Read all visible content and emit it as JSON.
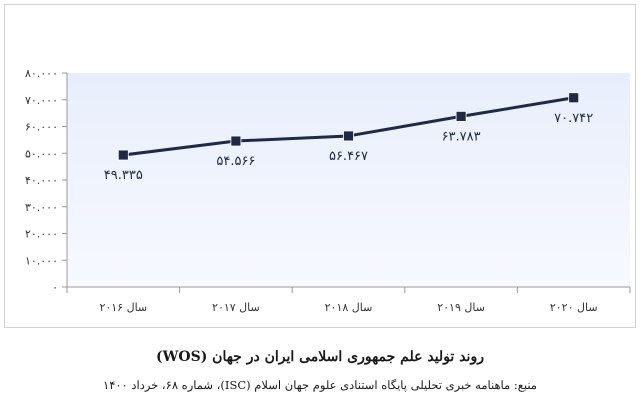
{
  "chart_data": {
    "type": "line",
    "categories": [
      "سال ۲۰۱۶",
      "سال ۲۰۱۷",
      "سال ۲۰۱۸",
      "سال ۲۰۱۹",
      "سال ۲۰۲۰"
    ],
    "values": [
      49335,
      54566,
      56467,
      63783,
      70742
    ],
    "data_labels": [
      "۴۹.۳۳۵",
      "۵۴.۵۶۶",
      "۵۶.۴۶۷",
      "۶۳.۷۸۳",
      "۷۰.۷۴۲"
    ],
    "yticks": [
      0,
      10000,
      20000,
      30000,
      40000,
      50000,
      60000,
      70000,
      80000
    ],
    "ytick_labels": [
      "۰",
      "۱۰.۰۰۰",
      "۲۰.۰۰۰",
      "۳۰.۰۰۰",
      "۴۰.۰۰۰",
      "۵۰.۰۰۰",
      "۶۰.۰۰۰",
      "۷۰.۰۰۰",
      "۸۰.۰۰۰"
    ],
    "ylim": [
      0,
      80000
    ],
    "grid": false,
    "colors": {
      "plot_bg_top": "#e8eefb",
      "plot_bg_bottom": "#f7f9ff",
      "line": "#1f2a44",
      "marker": "#1f2a44"
    }
  },
  "caption": {
    "title": "روند تولید علم جمهوری اسلامی ایران در جهان (WOS)",
    "bullet": "·",
    "source": "منبع: ماهنامه خبری تحلیلی پایگاه استنادی علوم جهان اسلام (ISC)، شماره ۶۸، خرداد ۱۴۰۰"
  }
}
